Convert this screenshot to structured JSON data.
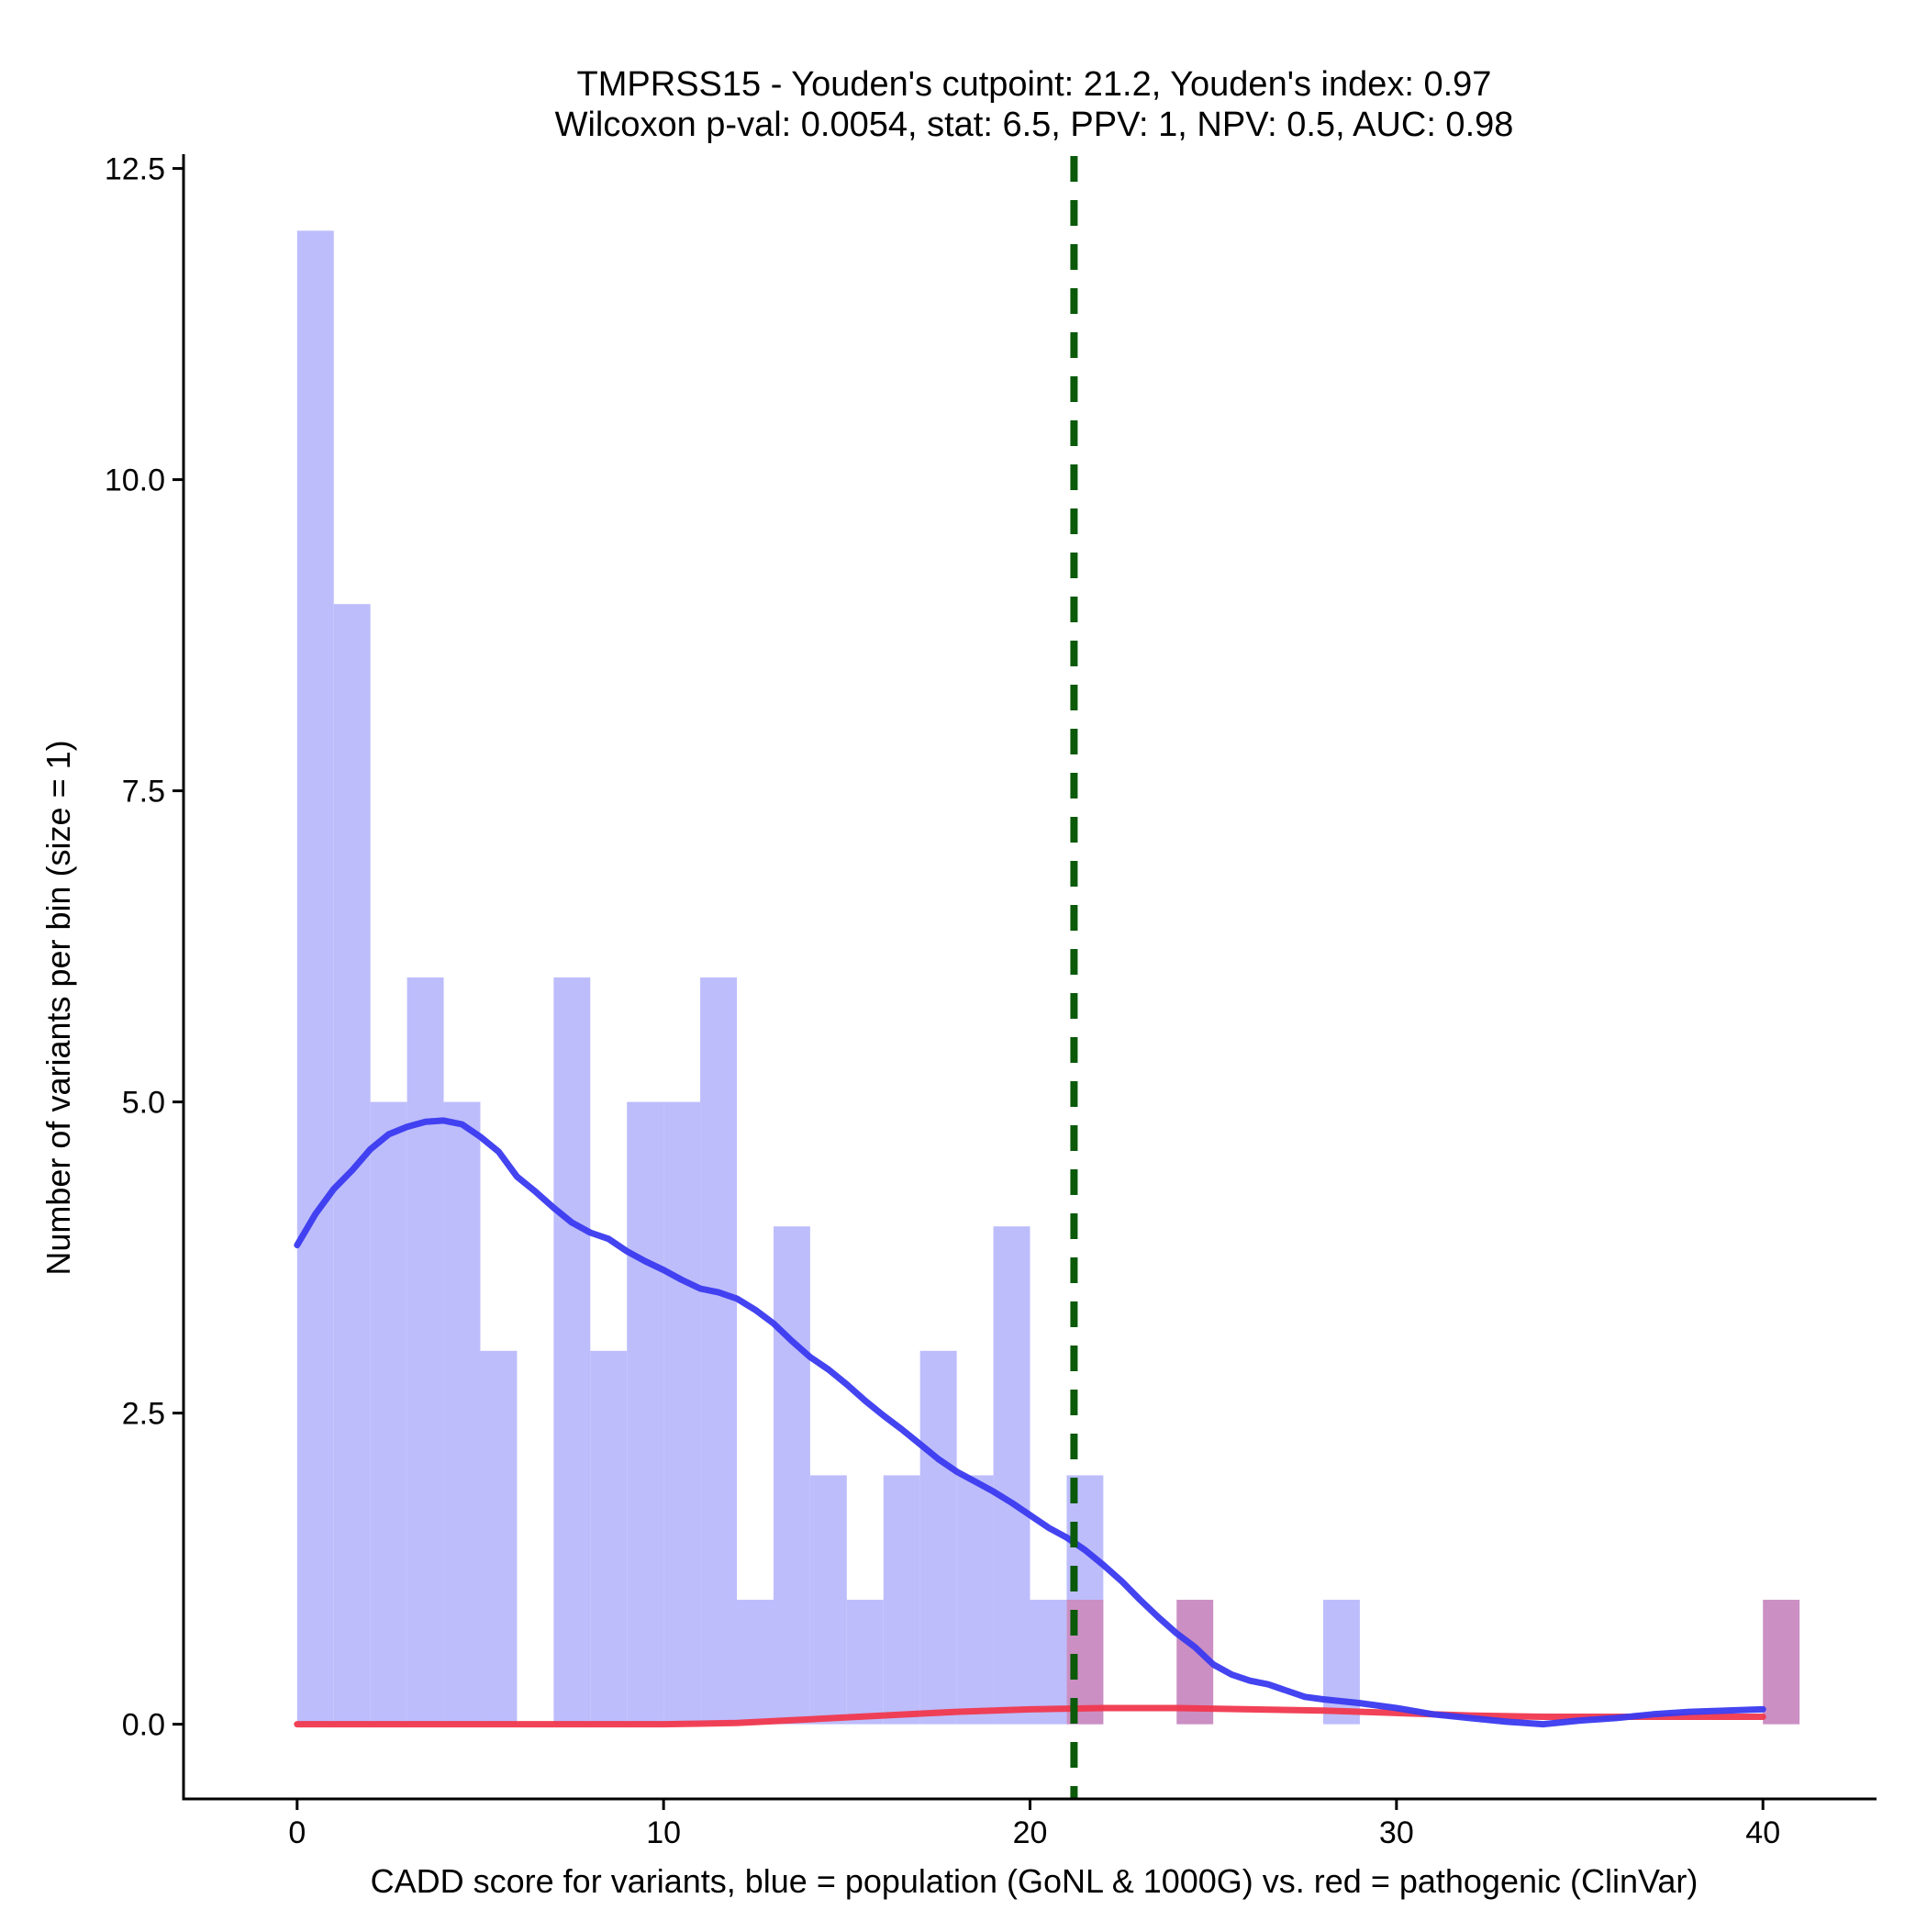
{
  "chart_data": {
    "type": "histogram",
    "title_line1": "TMPRSS15 - Youden's cutpoint: 21.2, Youden's index: 0.97",
    "title_line2": "Wilcoxon p-val: 0.0054, stat: 6.5, PPV: 1, NPV: 0.5, AUC: 0.98",
    "xlabel": "CADD score for variants, blue = population (GoNL & 1000G) vs. red = pathogenic (ClinVar)",
    "ylabel": "Number of variants per bin (size = 1)",
    "xlim": [
      -3.1,
      43.1
    ],
    "ylim": [
      -0.6,
      12.6
    ],
    "x_ticks": [
      0,
      10,
      20,
      30,
      40
    ],
    "x_tick_labels": [
      "0",
      "10",
      "20",
      "30",
      "40"
    ],
    "y_ticks": [
      0,
      2.5,
      5,
      7.5,
      10,
      12.5
    ],
    "y_tick_labels": [
      "0.0",
      "2.5",
      "5.0",
      "7.5",
      "10.0",
      "12.5"
    ],
    "bin_size": 1,
    "cutpoint": 21.2,
    "colors": {
      "population_bar": "#bdbdfc",
      "pathogenic_bar": "#cb8fc3",
      "population_density": "#3a3af0",
      "pathogenic_density": "#f0384e",
      "cutpoint_line": "#0a5a0a",
      "axis": "#000000"
    },
    "series": [
      {
        "name": "population (GoNL & 1000G)",
        "bins": [
          {
            "x0": 0,
            "count": 12
          },
          {
            "x0": 1,
            "count": 9
          },
          {
            "x0": 2,
            "count": 5
          },
          {
            "x0": 3,
            "count": 6
          },
          {
            "x0": 4,
            "count": 5
          },
          {
            "x0": 5,
            "count": 3
          },
          {
            "x0": 7,
            "count": 6
          },
          {
            "x0": 8,
            "count": 3
          },
          {
            "x0": 9,
            "count": 5
          },
          {
            "x0": 10,
            "count": 5
          },
          {
            "x0": 11,
            "count": 6
          },
          {
            "x0": 12,
            "count": 1
          },
          {
            "x0": 13,
            "count": 4
          },
          {
            "x0": 14,
            "count": 2
          },
          {
            "x0": 15,
            "count": 1
          },
          {
            "x0": 16,
            "count": 2
          },
          {
            "x0": 17,
            "count": 3
          },
          {
            "x0": 18,
            "count": 2
          },
          {
            "x0": 19,
            "count": 4
          },
          {
            "x0": 20,
            "count": 1
          },
          {
            "x0": 21,
            "count": 2
          },
          {
            "x0": 28,
            "count": 1
          }
        ]
      },
      {
        "name": "pathogenic (ClinVar)",
        "bins": [
          {
            "x0": 21,
            "count": 1
          },
          {
            "x0": 24,
            "count": 1
          },
          {
            "x0": 40,
            "count": 1
          }
        ]
      }
    ],
    "density_curves": [
      {
        "name": "population density",
        "points": [
          [
            0,
            3.85
          ],
          [
            0.5,
            4.1
          ],
          [
            1,
            4.3
          ],
          [
            1.5,
            4.45
          ],
          [
            2,
            4.62
          ],
          [
            2.5,
            4.74
          ],
          [
            3,
            4.8
          ],
          [
            3.5,
            4.84
          ],
          [
            4,
            4.85
          ],
          [
            4.5,
            4.82
          ],
          [
            5,
            4.72
          ],
          [
            5.5,
            4.6
          ],
          [
            6,
            4.4
          ],
          [
            6.5,
            4.28
          ],
          [
            7,
            4.15
          ],
          [
            7.5,
            4.03
          ],
          [
            8,
            3.95
          ],
          [
            8.5,
            3.9
          ],
          [
            9,
            3.8
          ],
          [
            9.5,
            3.72
          ],
          [
            10,
            3.65
          ],
          [
            10.5,
            3.57
          ],
          [
            11,
            3.5
          ],
          [
            11.5,
            3.47
          ],
          [
            12,
            3.42
          ],
          [
            12.5,
            3.33
          ],
          [
            13,
            3.22
          ],
          [
            13.5,
            3.08
          ],
          [
            14,
            2.95
          ],
          [
            14.5,
            2.85
          ],
          [
            15,
            2.73
          ],
          [
            15.5,
            2.6
          ],
          [
            16,
            2.48
          ],
          [
            16.5,
            2.37
          ],
          [
            17,
            2.25
          ],
          [
            17.5,
            2.13
          ],
          [
            18,
            2.03
          ],
          [
            18.5,
            1.95
          ],
          [
            19,
            1.87
          ],
          [
            19.5,
            1.78
          ],
          [
            20,
            1.68
          ],
          [
            20.5,
            1.58
          ],
          [
            21,
            1.5
          ],
          [
            21.5,
            1.4
          ],
          [
            22,
            1.28
          ],
          [
            22.5,
            1.15
          ],
          [
            23,
            1.0
          ],
          [
            23.5,
            0.86
          ],
          [
            24,
            0.73
          ],
          [
            24.5,
            0.62
          ],
          [
            25,
            0.48
          ],
          [
            25.5,
            0.4
          ],
          [
            26,
            0.35
          ],
          [
            26.5,
            0.32
          ],
          [
            27,
            0.27
          ],
          [
            27.5,
            0.22
          ],
          [
            28,
            0.2
          ],
          [
            29,
            0.17
          ],
          [
            30,
            0.13
          ],
          [
            31,
            0.08
          ],
          [
            32,
            0.05
          ],
          [
            33,
            0.02
          ],
          [
            34,
            0.0
          ],
          [
            35,
            0.03
          ],
          [
            36,
            0.05
          ],
          [
            37,
            0.08
          ],
          [
            38,
            0.1
          ],
          [
            39,
            0.11
          ],
          [
            40,
            0.12
          ]
        ]
      },
      {
        "name": "pathogenic density",
        "points": [
          [
            0,
            0.0
          ],
          [
            5,
            0.0
          ],
          [
            10,
            0.0
          ],
          [
            12,
            0.01
          ],
          [
            14,
            0.04
          ],
          [
            16,
            0.07
          ],
          [
            18,
            0.1
          ],
          [
            20,
            0.12
          ],
          [
            22,
            0.13
          ],
          [
            24,
            0.13
          ],
          [
            26,
            0.12
          ],
          [
            28,
            0.11
          ],
          [
            30,
            0.09
          ],
          [
            32,
            0.07
          ],
          [
            34,
            0.06
          ],
          [
            36,
            0.06
          ],
          [
            38,
            0.06
          ],
          [
            40,
            0.06
          ]
        ]
      }
    ]
  }
}
